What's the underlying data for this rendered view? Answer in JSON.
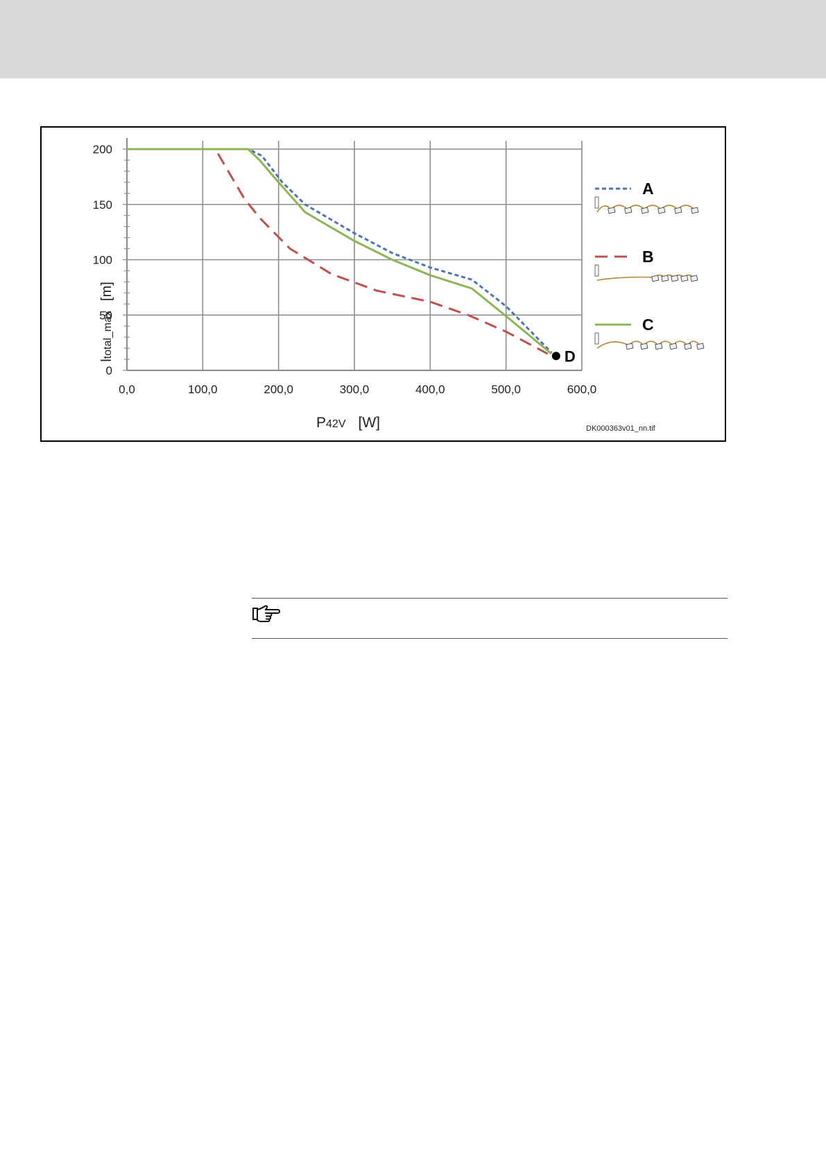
{
  "chart_data": {
    "type": "line",
    "xlabel": "P42V",
    "xlabel_main": "P",
    "xlabel_sub": "42V",
    "xunit": "[W]",
    "ylabel": "ltotal_max",
    "ylabel_main": "l",
    "ylabel_sub": "total_max",
    "yunit": "[m]",
    "xlim": [
      0,
      600
    ],
    "ylim": [
      0,
      200
    ],
    "xticks": [
      "0,0",
      "100,0",
      "200,0",
      "300,0",
      "400,0",
      "500,0",
      "600,0"
    ],
    "yticks": [
      "0",
      "50",
      "100",
      "150",
      "200"
    ],
    "grid": true,
    "legend_position": "right",
    "series": [
      {
        "name": "A",
        "color": "#4f74b8",
        "style": "dotted",
        "x": [
          0,
          160,
          178,
          205,
          235,
          300,
          350,
          400,
          455,
          500,
          560
        ],
        "y": [
          200,
          200,
          194,
          170,
          150,
          124,
          106,
          93,
          82,
          58,
          16
        ]
      },
      {
        "name": "B",
        "color": "#c0504d",
        "style": "dashed",
        "x": [
          120,
          155,
          175,
          215,
          270,
          330,
          400,
          450,
          500,
          555
        ],
        "y": [
          196,
          155,
          138,
          110,
          87,
          72,
          62,
          50,
          35,
          15
        ]
      },
      {
        "name": "C",
        "color": "#8db554",
        "style": "solid",
        "x": [
          0,
          160,
          175,
          200,
          235,
          300,
          350,
          400,
          455,
          500,
          560
        ],
        "y": [
          200,
          200,
          190,
          170,
          143,
          117,
          100,
          86,
          74,
          49,
          15
        ]
      }
    ],
    "point_D": {
      "label": "D",
      "x": 566,
      "y": 13
    },
    "image_id": "DK000363v01_nn.tif"
  },
  "note": {
    "icon": "pointing-hand-icon"
  }
}
